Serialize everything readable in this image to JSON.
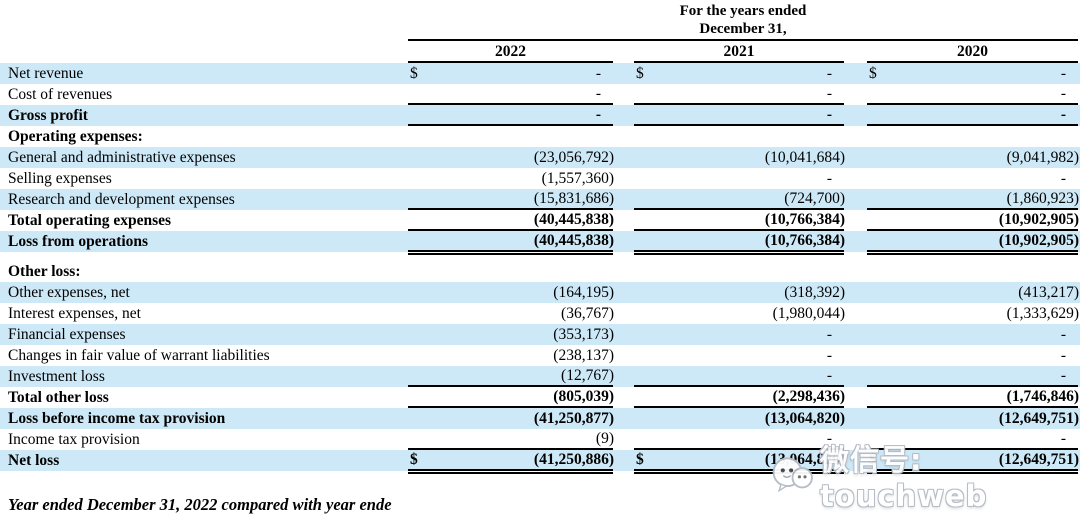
{
  "document": {
    "header": {
      "period_line1": "For the years ended",
      "period_line2": "December 31,",
      "years": [
        "2022",
        "2021",
        "2020"
      ]
    },
    "table": {
      "currency_symbol": "$",
      "rows": [
        {
          "label": "Net revenue",
          "dollar": true,
          "values": [
            "-",
            "-",
            "-"
          ],
          "rule": "none"
        },
        {
          "label": "Cost of revenues",
          "values": [
            "-",
            "-",
            "-"
          ],
          "rule": "single"
        },
        {
          "label": "Gross profit",
          "emphasis": true,
          "values": [
            "-",
            "-",
            "-"
          ],
          "rule": "single"
        },
        {
          "label": "Operating expenses:",
          "emphasis": true,
          "section": true,
          "values": [
            "",
            "",
            ""
          ],
          "rule": "none"
        },
        {
          "label": "General and administrative expenses",
          "values": [
            "(23,056,792)",
            "(10,041,684)",
            "(9,041,982)"
          ],
          "rule": "none"
        },
        {
          "label": "Selling expenses",
          "values": [
            "(1,557,360)",
            "-",
            "-"
          ],
          "rule": "none"
        },
        {
          "label": "Research and development expenses",
          "values": [
            "(15,831,686)",
            "(724,700)",
            "(1,860,923)"
          ],
          "rule": "single"
        },
        {
          "label": "Total operating expenses",
          "emphasis": true,
          "values": [
            "(40,445,838)",
            "(10,766,384)",
            "(10,902,905)"
          ],
          "rule": "single"
        },
        {
          "label": "Loss from operations",
          "emphasis": true,
          "values": [
            "(40,445,838)",
            "(10,766,384)",
            "(10,902,905)"
          ],
          "rule": "double"
        },
        {
          "label": "Other loss:",
          "emphasis": true,
          "section": true,
          "values": [
            "",
            "",
            ""
          ],
          "rule": "none",
          "spacer_before": true
        },
        {
          "label": "Other expenses, net",
          "values": [
            "(164,195)",
            "(318,392)",
            "(413,217)"
          ],
          "rule": "none"
        },
        {
          "label": "Interest expenses, net",
          "values": [
            "(36,767)",
            "(1,980,044)",
            "(1,333,629)"
          ],
          "rule": "none"
        },
        {
          "label": "Financial expenses",
          "values": [
            "(353,173)",
            "-",
            "-"
          ],
          "rule": "none"
        },
        {
          "label": "Changes in fair value of warrant liabilities",
          "values": [
            "(238,137)",
            "-",
            "-"
          ],
          "rule": "none"
        },
        {
          "label": "Investment loss",
          "values": [
            "(12,767)",
            "-",
            "-"
          ],
          "rule": "single"
        },
        {
          "label": "Total other loss",
          "emphasis": true,
          "values": [
            "(805,039)",
            "(2,298,436)",
            "(1,746,846)"
          ],
          "rule": "single"
        },
        {
          "label": "Loss before income tax provision",
          "emphasis": true,
          "values": [
            "(41,250,877)",
            "(13,064,820)",
            "(12,649,751)"
          ],
          "rule": "none"
        },
        {
          "label": "Income tax provision",
          "values": [
            "(9)",
            "-",
            "-"
          ],
          "rule": "single"
        },
        {
          "label": "Net loss",
          "emphasis": true,
          "dollar": true,
          "values": [
            "(41,250,886)",
            "(13,064,820)",
            "(12,649,751)"
          ],
          "rule": "double"
        }
      ]
    },
    "footer_text": "Year ended December 31, 2022 compared with year ende",
    "watermark": {
      "text": "微信号: touchweb",
      "icon": "chat-face-logo"
    },
    "colors": {
      "row_stripe": "#cde9f7",
      "rule": "#000000",
      "watermark_fill": "#ffffff",
      "watermark_outline": "#b4bac3"
    }
  }
}
